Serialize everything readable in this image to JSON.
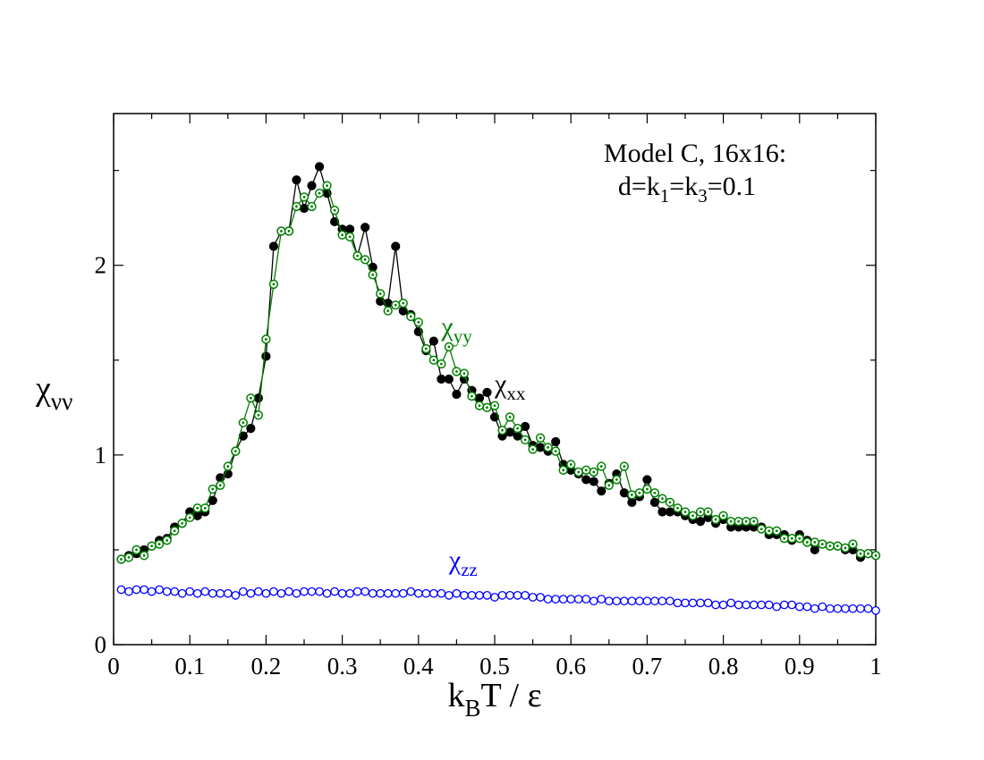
{
  "chart_data": {
    "type": "line",
    "annotation": {
      "line1": "Model C, 16x16:",
      "line2_prefix": "d=k",
      "line2_sub1": "1",
      "line2_mid": "=k",
      "line2_sub2": "3",
      "line2_suffix": "=0.1"
    },
    "xlabel": {
      "main": "k",
      "sub": "B",
      "rest": "T / ε"
    },
    "ylabel": {
      "main": "χ",
      "sub": "νν"
    },
    "xlim": [
      0,
      1
    ],
    "ylim": [
      0,
      2.8
    ],
    "xticks": [
      0,
      0.1,
      0.2,
      0.3,
      0.4,
      0.5,
      0.6,
      0.7,
      0.8,
      0.9,
      1
    ],
    "xtick_labels": [
      "0",
      "0.1",
      "0.2",
      "0.3",
      "0.4",
      "0.5",
      "0.6",
      "0.7",
      "0.8",
      "0.9",
      "1"
    ],
    "yticks": [
      0,
      1,
      2
    ],
    "ytick_labels": [
      "0",
      "1",
      "2"
    ],
    "colors": {
      "xx": "#000000",
      "yy": "#008000",
      "zz": "#0000ff"
    },
    "series": [
      {
        "name": "χxx",
        "label_main": "χ",
        "label_sub": "xx",
        "label_at": [
          0.5,
          1.33
        ],
        "color": "#000000",
        "marker": "filled-circle",
        "x": [
          0.01,
          0.02,
          0.03,
          0.04,
          0.05,
          0.06,
          0.07,
          0.08,
          0.09,
          0.1,
          0.11,
          0.12,
          0.13,
          0.14,
          0.15,
          0.16,
          0.17,
          0.18,
          0.19,
          0.2,
          0.21,
          0.22,
          0.23,
          0.24,
          0.25,
          0.26,
          0.27,
          0.28,
          0.29,
          0.3,
          0.31,
          0.32,
          0.33,
          0.34,
          0.35,
          0.36,
          0.37,
          0.38,
          0.39,
          0.4,
          0.41,
          0.42,
          0.43,
          0.44,
          0.45,
          0.46,
          0.47,
          0.48,
          0.49,
          0.5,
          0.51,
          0.52,
          0.53,
          0.54,
          0.55,
          0.56,
          0.57,
          0.58,
          0.59,
          0.6,
          0.61,
          0.62,
          0.63,
          0.64,
          0.65,
          0.66,
          0.67,
          0.68,
          0.69,
          0.7,
          0.71,
          0.72,
          0.73,
          0.74,
          0.75,
          0.76,
          0.77,
          0.78,
          0.79,
          0.8,
          0.81,
          0.82,
          0.83,
          0.84,
          0.85,
          0.86,
          0.87,
          0.88,
          0.89,
          0.9,
          0.91,
          0.92,
          0.93,
          0.94,
          0.95,
          0.96,
          0.97,
          0.98,
          0.99,
          1.0
        ],
        "values": [
          0.45,
          0.47,
          0.48,
          0.5,
          0.52,
          0.55,
          0.56,
          0.62,
          0.64,
          0.7,
          0.68,
          0.7,
          0.76,
          0.88,
          0.9,
          1.02,
          1.1,
          1.14,
          1.3,
          1.52,
          2.1,
          2.18,
          2.18,
          2.45,
          2.3,
          2.42,
          2.52,
          2.38,
          2.23,
          2.19,
          2.19,
          2.05,
          2.2,
          1.99,
          1.81,
          1.8,
          2.1,
          1.76,
          1.74,
          1.65,
          1.55,
          1.6,
          1.4,
          1.4,
          1.32,
          1.4,
          1.34,
          1.3,
          1.33,
          1.2,
          1.1,
          1.12,
          1.1,
          1.15,
          1.05,
          1.04,
          1.02,
          1.07,
          0.95,
          0.92,
          0.9,
          0.87,
          0.86,
          0.81,
          0.85,
          0.9,
          0.8,
          0.75,
          0.78,
          0.87,
          0.75,
          0.7,
          0.7,
          0.7,
          0.68,
          0.66,
          0.65,
          0.67,
          0.64,
          0.66,
          0.62,
          0.62,
          0.62,
          0.62,
          0.62,
          0.58,
          0.58,
          0.58,
          0.55,
          0.58,
          0.55,
          0.5,
          0.53,
          0.52,
          0.52,
          0.5,
          0.5,
          0.46,
          0.48,
          0.47
        ]
      },
      {
        "name": "χyy",
        "label_main": "χ",
        "label_sub": "yy",
        "label_at": [
          0.43,
          1.63
        ],
        "color": "#008000",
        "marker": "open-circle-dotted",
        "x": [
          0.01,
          0.02,
          0.03,
          0.04,
          0.05,
          0.06,
          0.07,
          0.08,
          0.09,
          0.1,
          0.11,
          0.12,
          0.13,
          0.14,
          0.15,
          0.16,
          0.17,
          0.18,
          0.19,
          0.2,
          0.21,
          0.22,
          0.23,
          0.24,
          0.25,
          0.26,
          0.27,
          0.28,
          0.29,
          0.3,
          0.31,
          0.32,
          0.33,
          0.34,
          0.35,
          0.36,
          0.37,
          0.38,
          0.39,
          0.4,
          0.41,
          0.42,
          0.43,
          0.44,
          0.45,
          0.46,
          0.47,
          0.48,
          0.49,
          0.5,
          0.51,
          0.52,
          0.53,
          0.54,
          0.55,
          0.56,
          0.57,
          0.58,
          0.59,
          0.6,
          0.61,
          0.62,
          0.63,
          0.64,
          0.65,
          0.66,
          0.67,
          0.68,
          0.69,
          0.7,
          0.71,
          0.72,
          0.73,
          0.74,
          0.75,
          0.76,
          0.77,
          0.78,
          0.79,
          0.8,
          0.81,
          0.82,
          0.83,
          0.84,
          0.85,
          0.86,
          0.87,
          0.88,
          0.89,
          0.9,
          0.91,
          0.92,
          0.93,
          0.94,
          0.95,
          0.96,
          0.97,
          0.98,
          0.99,
          1.0
        ],
        "values": [
          0.45,
          0.46,
          0.5,
          0.47,
          0.52,
          0.53,
          0.55,
          0.6,
          0.64,
          0.67,
          0.72,
          0.72,
          0.82,
          0.84,
          0.94,
          1.02,
          1.17,
          1.3,
          1.21,
          1.61,
          1.9,
          2.18,
          2.18,
          2.31,
          2.36,
          2.31,
          2.38,
          2.42,
          2.29,
          2.16,
          2.15,
          2.05,
          2.03,
          1.95,
          1.85,
          1.76,
          1.79,
          1.8,
          1.73,
          1.7,
          1.56,
          1.5,
          1.48,
          1.57,
          1.44,
          1.43,
          1.31,
          1.26,
          1.25,
          1.26,
          1.13,
          1.2,
          1.14,
          1.08,
          1.03,
          1.09,
          1.04,
          1.02,
          0.92,
          0.95,
          0.91,
          0.92,
          0.91,
          0.94,
          0.84,
          0.87,
          0.94,
          0.79,
          0.8,
          0.82,
          0.8,
          0.77,
          0.75,
          0.72,
          0.7,
          0.68,
          0.7,
          0.7,
          0.66,
          0.68,
          0.65,
          0.65,
          0.65,
          0.65,
          0.61,
          0.6,
          0.6,
          0.56,
          0.56,
          0.56,
          0.54,
          0.54,
          0.53,
          0.52,
          0.52,
          0.51,
          0.53,
          0.48,
          0.48,
          0.47
        ]
      },
      {
        "name": "χzz",
        "label_main": "χ",
        "label_sub": "zz",
        "label_at": [
          0.44,
          0.4
        ],
        "color": "#0000ff",
        "marker": "open-circle",
        "x": [
          0.01,
          0.02,
          0.03,
          0.04,
          0.05,
          0.06,
          0.07,
          0.08,
          0.09,
          0.1,
          0.11,
          0.12,
          0.13,
          0.14,
          0.15,
          0.16,
          0.17,
          0.18,
          0.19,
          0.2,
          0.21,
          0.22,
          0.23,
          0.24,
          0.25,
          0.26,
          0.27,
          0.28,
          0.29,
          0.3,
          0.31,
          0.32,
          0.33,
          0.34,
          0.35,
          0.36,
          0.37,
          0.38,
          0.39,
          0.4,
          0.41,
          0.42,
          0.43,
          0.44,
          0.45,
          0.46,
          0.47,
          0.48,
          0.49,
          0.5,
          0.51,
          0.52,
          0.53,
          0.54,
          0.55,
          0.56,
          0.57,
          0.58,
          0.59,
          0.6,
          0.61,
          0.62,
          0.63,
          0.64,
          0.65,
          0.66,
          0.67,
          0.68,
          0.69,
          0.7,
          0.71,
          0.72,
          0.73,
          0.74,
          0.75,
          0.76,
          0.77,
          0.78,
          0.79,
          0.8,
          0.81,
          0.82,
          0.83,
          0.84,
          0.85,
          0.86,
          0.87,
          0.88,
          0.89,
          0.9,
          0.91,
          0.92,
          0.93,
          0.94,
          0.95,
          0.96,
          0.97,
          0.98,
          0.99,
          1.0
        ],
        "values": [
          0.29,
          0.28,
          0.29,
          0.29,
          0.28,
          0.29,
          0.28,
          0.28,
          0.27,
          0.28,
          0.27,
          0.28,
          0.27,
          0.27,
          0.27,
          0.26,
          0.28,
          0.27,
          0.28,
          0.27,
          0.28,
          0.27,
          0.28,
          0.27,
          0.28,
          0.28,
          0.28,
          0.27,
          0.28,
          0.27,
          0.27,
          0.28,
          0.28,
          0.27,
          0.27,
          0.27,
          0.27,
          0.27,
          0.28,
          0.27,
          0.27,
          0.27,
          0.27,
          0.26,
          0.27,
          0.26,
          0.26,
          0.26,
          0.26,
          0.25,
          0.26,
          0.26,
          0.26,
          0.26,
          0.25,
          0.25,
          0.24,
          0.24,
          0.24,
          0.24,
          0.24,
          0.24,
          0.23,
          0.24,
          0.23,
          0.23,
          0.23,
          0.23,
          0.23,
          0.23,
          0.23,
          0.23,
          0.23,
          0.22,
          0.22,
          0.22,
          0.22,
          0.22,
          0.21,
          0.21,
          0.22,
          0.21,
          0.21,
          0.21,
          0.21,
          0.21,
          0.2,
          0.21,
          0.21,
          0.2,
          0.2,
          0.19,
          0.2,
          0.19,
          0.19,
          0.19,
          0.19,
          0.19,
          0.19,
          0.18
        ]
      }
    ]
  }
}
